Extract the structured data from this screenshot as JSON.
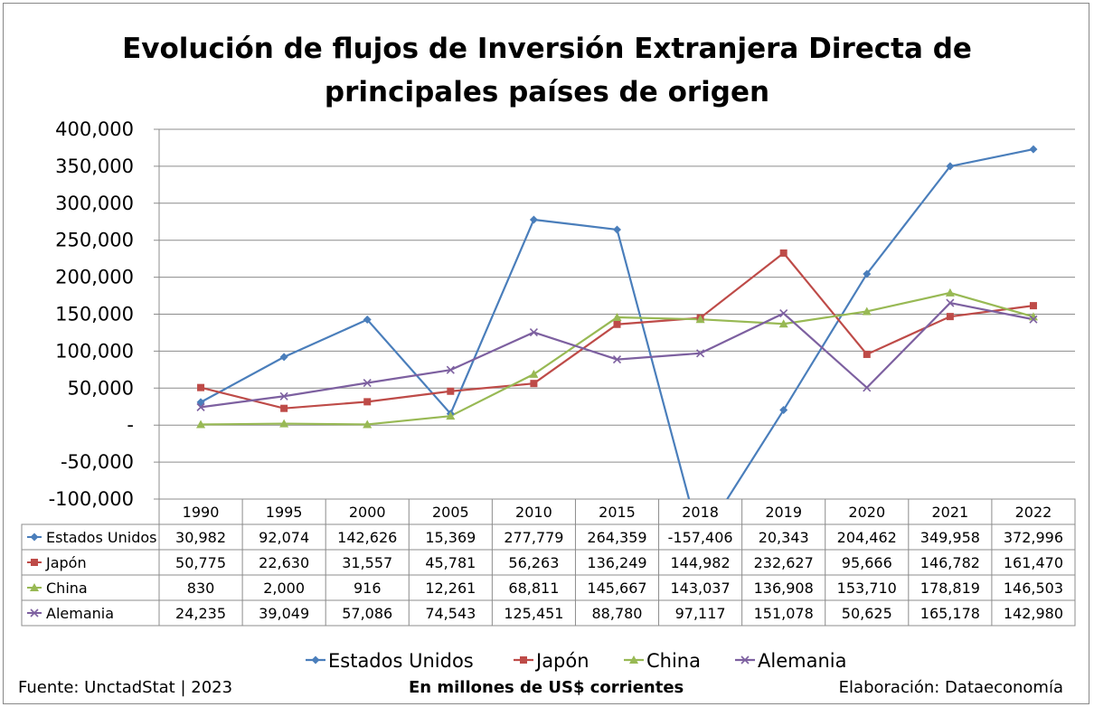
{
  "title_line1": "Evolución de flujos de Inversión Extranjera Directa de",
  "title_line2": "principales países de origen",
  "footer": {
    "source": "Fuente: UnctadStat | 2023",
    "units": "En millones de US$ corrientes",
    "author": "Elaboración: Dataeconomía"
  },
  "chart_data": {
    "type": "line",
    "title": "Evolución de flujos de Inversión Extranjera Directa de principales países de origen",
    "xlabel": "",
    "ylabel": "",
    "categories": [
      "1990",
      "1995",
      "2000",
      "2005",
      "2010",
      "2015",
      "2018",
      "2019",
      "2020",
      "2021",
      "2022"
    ],
    "ylim": [
      -100000,
      400000
    ],
    "yticks": [
      "400,000",
      "350,000",
      "300,000",
      "250,000",
      "200,000",
      "150,000",
      "100,000",
      "50,000",
      "-",
      "-50,000",
      "-100,000"
    ],
    "grid": true,
    "legend_position": "bottom",
    "data_table": true,
    "series": [
      {
        "name": "Estados Unidos",
        "color": "#4A7EBB",
        "marker": "diamond",
        "values": [
          30982,
          92074,
          142626,
          15369,
          277779,
          264359,
          -157406,
          20343,
          204462,
          349958,
          372996
        ],
        "labels": [
          "30,982",
          "92,074",
          "142,626",
          "15,369",
          "277,779",
          "264,359",
          "-157,406",
          "20,343",
          "204,462",
          "349,958",
          "372,996"
        ]
      },
      {
        "name": "Japón",
        "color": "#BE4B48",
        "marker": "square",
        "values": [
          50775,
          22630,
          31557,
          45781,
          56263,
          136249,
          144982,
          232627,
          95666,
          146782,
          161470
        ],
        "labels": [
          "50,775",
          "22,630",
          "31,557",
          "45,781",
          "56,263",
          "136,249",
          "144,982",
          "232,627",
          "95,666",
          "146,782",
          "161,470"
        ]
      },
      {
        "name": "China",
        "color": "#98B954",
        "marker": "triangle",
        "values": [
          830,
          2000,
          916,
          12261,
          68811,
          145667,
          143037,
          136908,
          153710,
          178819,
          146503
        ],
        "labels": [
          "830",
          "2,000",
          "916",
          "12,261",
          "68,811",
          "145,667",
          "143,037",
          "136,908",
          "153,710",
          "178,819",
          "146,503"
        ]
      },
      {
        "name": "Alemania",
        "color": "#7D60A0",
        "marker": "x",
        "values": [
          24235,
          39049,
          57086,
          74543,
          125451,
          88780,
          97117,
          151078,
          50625,
          165178,
          142980
        ],
        "labels": [
          "24,235",
          "39,049",
          "57,086",
          "74,543",
          "125,451",
          "88,780",
          "97,117",
          "151,078",
          "50,625",
          "165,178",
          "142,980"
        ]
      }
    ]
  }
}
